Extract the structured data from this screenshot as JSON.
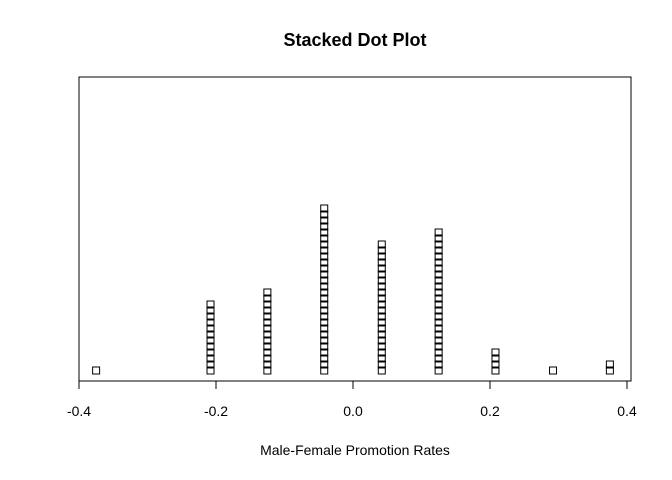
{
  "chart_data": {
    "type": "scatter",
    "subtype": "stacked-dot",
    "title": "Stacked Dot Plot",
    "xlabel": "Male-Female Promotion Rates",
    "ylabel": "",
    "xlim": [
      -0.4,
      0.4
    ],
    "x_ticks": [
      -0.4,
      -0.2,
      0.0,
      0.2,
      0.4
    ],
    "x_tick_labels": [
      "-0.4",
      "-0.2",
      "0.0",
      "0.2",
      "0.4"
    ],
    "marker": "open-square",
    "grid": false,
    "legend": "none",
    "stacks": [
      {
        "x": -0.375,
        "count": 1
      },
      {
        "x": -0.208,
        "count": 12
      },
      {
        "x": -0.125,
        "count": 14
      },
      {
        "x": -0.042,
        "count": 28
      },
      {
        "x": 0.042,
        "count": 22
      },
      {
        "x": 0.125,
        "count": 24
      },
      {
        "x": 0.208,
        "count": 4
      },
      {
        "x": 0.292,
        "count": 1
      },
      {
        "x": 0.375,
        "count": 2
      }
    ]
  }
}
